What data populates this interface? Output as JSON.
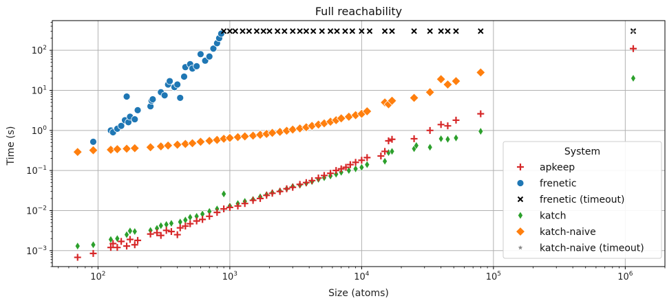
{
  "chart_data": {
    "type": "scatter",
    "title": "Full reachability",
    "xlabel": "Size (atoms)",
    "ylabel": "Time (s)",
    "xscale": "log",
    "yscale": "log",
    "xlim": [
      45,
      2000000
    ],
    "ylim": [
      0.0004,
      550
    ],
    "grid": true,
    "legend": {
      "title": "System",
      "placement": "lower-right"
    },
    "x_ticks": [
      {
        "value": 100,
        "base": "10",
        "exp": "2"
      },
      {
        "value": 1000,
        "base": "10",
        "exp": "3"
      },
      {
        "value": 10000,
        "base": "10",
        "exp": "4"
      },
      {
        "value": 100000,
        "base": "10",
        "exp": "5"
      },
      {
        "value": 1000000,
        "base": "10",
        "exp": "6"
      }
    ],
    "y_ticks": [
      {
        "value": 0.001,
        "base": "10",
        "exp": "−3"
      },
      {
        "value": 0.01,
        "base": "10",
        "exp": "−2"
      },
      {
        "value": 0.1,
        "base": "10",
        "exp": "−1"
      },
      {
        "value": 1,
        "base": "10",
        "exp": "0"
      },
      {
        "value": 10,
        "base": "10",
        "exp": "1"
      },
      {
        "value": 100,
        "base": "10",
        "exp": "2"
      }
    ],
    "series": [
      {
        "name": "apkeep",
        "marker": "plus",
        "color": "#d62728",
        "points": [
          [
            70,
            0.00068
          ],
          [
            92,
            0.00085
          ],
          [
            125,
            0.0012
          ],
          [
            130,
            0.0015
          ],
          [
            140,
            0.0012
          ],
          [
            150,
            0.0017
          ],
          [
            165,
            0.0013
          ],
          [
            175,
            0.0019
          ],
          [
            190,
            0.0014
          ],
          [
            200,
            0.0018
          ],
          [
            250,
            0.0026
          ],
          [
            280,
            0.0028
          ],
          [
            300,
            0.0024
          ],
          [
            330,
            0.0032
          ],
          [
            360,
            0.003
          ],
          [
            400,
            0.0025
          ],
          [
            420,
            0.0037
          ],
          [
            460,
            0.0041
          ],
          [
            500,
            0.0047
          ],
          [
            560,
            0.0055
          ],
          [
            620,
            0.006
          ],
          [
            700,
            0.0072
          ],
          [
            800,
            0.009
          ],
          [
            900,
            0.011
          ],
          [
            1000,
            0.012
          ],
          [
            1150,
            0.013
          ],
          [
            1300,
            0.015
          ],
          [
            1500,
            0.018
          ],
          [
            1700,
            0.02
          ],
          [
            1900,
            0.024
          ],
          [
            2100,
            0.027
          ],
          [
            2400,
            0.03
          ],
          [
            2700,
            0.035
          ],
          [
            3000,
            0.038
          ],
          [
            3400,
            0.045
          ],
          [
            3800,
            0.05
          ],
          [
            4200,
            0.056
          ],
          [
            4700,
            0.065
          ],
          [
            5200,
            0.075
          ],
          [
            5800,
            0.085
          ],
          [
            6400,
            0.1
          ],
          [
            7000,
            0.11
          ],
          [
            7600,
            0.12
          ],
          [
            8200,
            0.14
          ],
          [
            9000,
            0.16
          ],
          [
            10000,
            0.18
          ],
          [
            11000,
            0.21
          ],
          [
            14000,
            0.23
          ],
          [
            15000,
            0.3
          ],
          [
            16000,
            0.55
          ],
          [
            17000,
            0.6
          ],
          [
            25000,
            0.62
          ],
          [
            33000,
            1.0
          ],
          [
            40000,
            1.4
          ],
          [
            45000,
            1.3
          ],
          [
            52000,
            1.8
          ],
          [
            80000,
            2.6
          ],
          [
            1150000,
            110
          ]
        ]
      },
      {
        "name": "frenetic",
        "marker": "circle",
        "color": "#1f77b4",
        "points": [
          [
            92,
            0.52
          ],
          [
            125,
            1.0
          ],
          [
            130,
            0.9
          ],
          [
            140,
            1.1
          ],
          [
            150,
            1.3
          ],
          [
            160,
            1.8
          ],
          [
            165,
            7.0
          ],
          [
            170,
            1.6
          ],
          [
            175,
            2.2
          ],
          [
            190,
            1.9
          ],
          [
            200,
            3.2
          ],
          [
            250,
            4.0
          ],
          [
            255,
            5.5
          ],
          [
            260,
            6.0
          ],
          [
            300,
            9.0
          ],
          [
            320,
            7.5
          ],
          [
            340,
            14
          ],
          [
            350,
            17
          ],
          [
            380,
            12
          ],
          [
            400,
            14
          ],
          [
            420,
            6.5
          ],
          [
            450,
            22
          ],
          [
            460,
            38
          ],
          [
            500,
            45
          ],
          [
            520,
            35
          ],
          [
            560,
            40
          ],
          [
            600,
            80
          ],
          [
            650,
            55
          ],
          [
            700,
            70
          ],
          [
            750,
            110
          ],
          [
            800,
            150
          ],
          [
            830,
            200
          ],
          [
            860,
            260
          ]
        ]
      },
      {
        "name": "frenetic (timeout)",
        "marker": "x",
        "color": "#000000",
        "points": [
          [
            900,
            300
          ],
          [
            1000,
            300
          ],
          [
            1100,
            300
          ],
          [
            1250,
            300
          ],
          [
            1400,
            300
          ],
          [
            1600,
            300
          ],
          [
            1800,
            300
          ],
          [
            2000,
            300
          ],
          [
            2300,
            300
          ],
          [
            2600,
            300
          ],
          [
            3000,
            300
          ],
          [
            3400,
            300
          ],
          [
            3800,
            300
          ],
          [
            4300,
            300
          ],
          [
            5000,
            300
          ],
          [
            5800,
            300
          ],
          [
            6500,
            300
          ],
          [
            7500,
            300
          ],
          [
            8500,
            300
          ],
          [
            10000,
            300
          ],
          [
            11500,
            300
          ],
          [
            15000,
            300
          ],
          [
            17000,
            300
          ],
          [
            25000,
            300
          ],
          [
            33000,
            300
          ],
          [
            40000,
            300
          ],
          [
            45000,
            300
          ],
          [
            52000,
            300
          ],
          [
            80000,
            300
          ],
          [
            1150000,
            300
          ]
        ]
      },
      {
        "name": "katch",
        "marker": "diamond",
        "color": "#2ca02c",
        "points": [
          [
            70,
            0.0013
          ],
          [
            92,
            0.0014
          ],
          [
            125,
            0.0019
          ],
          [
            140,
            0.002
          ],
          [
            165,
            0.0025
          ],
          [
            175,
            0.0031
          ],
          [
            190,
            0.003
          ],
          [
            250,
            0.0032
          ],
          [
            280,
            0.0036
          ],
          [
            300,
            0.0042
          ],
          [
            330,
            0.0045
          ],
          [
            360,
            0.0048
          ],
          [
            420,
            0.0052
          ],
          [
            460,
            0.0058
          ],
          [
            500,
            0.0068
          ],
          [
            560,
            0.0072
          ],
          [
            620,
            0.0082
          ],
          [
            700,
            0.0095
          ],
          [
            800,
            0.011
          ],
          [
            900,
            0.026
          ],
          [
            1000,
            0.013
          ],
          [
            1150,
            0.015
          ],
          [
            1300,
            0.017
          ],
          [
            1500,
            0.019
          ],
          [
            1700,
            0.022
          ],
          [
            1900,
            0.025
          ],
          [
            2100,
            0.028
          ],
          [
            2400,
            0.031
          ],
          [
            2700,
            0.035
          ],
          [
            3000,
            0.04
          ],
          [
            3400,
            0.043
          ],
          [
            3800,
            0.048
          ],
          [
            4200,
            0.053
          ],
          [
            4700,
            0.06
          ],
          [
            5200,
            0.066
          ],
          [
            5800,
            0.073
          ],
          [
            6400,
            0.081
          ],
          [
            7000,
            0.09
          ],
          [
            8000,
            0.1
          ],
          [
            9000,
            0.11
          ],
          [
            10000,
            0.12
          ],
          [
            11000,
            0.14
          ],
          [
            15000,
            0.17
          ],
          [
            16000,
            0.28
          ],
          [
            17000,
            0.3
          ],
          [
            25000,
            0.35
          ],
          [
            26000,
            0.42
          ],
          [
            33000,
            0.38
          ],
          [
            40000,
            0.62
          ],
          [
            45000,
            0.6
          ],
          [
            52000,
            0.65
          ],
          [
            80000,
            0.95
          ],
          [
            1150000,
            20
          ]
        ]
      },
      {
        "name": "katch-naive",
        "marker": "diamond-large",
        "color": "#ff7f0e",
        "points": [
          [
            70,
            0.29
          ],
          [
            92,
            0.32
          ],
          [
            125,
            0.33
          ],
          [
            140,
            0.34
          ],
          [
            165,
            0.35
          ],
          [
            190,
            0.36
          ],
          [
            250,
            0.38
          ],
          [
            300,
            0.4
          ],
          [
            340,
            0.42
          ],
          [
            400,
            0.44
          ],
          [
            460,
            0.46
          ],
          [
            520,
            0.48
          ],
          [
            600,
            0.52
          ],
          [
            700,
            0.55
          ],
          [
            800,
            0.58
          ],
          [
            900,
            0.62
          ],
          [
            1000,
            0.65
          ],
          [
            1150,
            0.68
          ],
          [
            1300,
            0.71
          ],
          [
            1500,
            0.74
          ],
          [
            1700,
            0.78
          ],
          [
            1900,
            0.82
          ],
          [
            2100,
            0.87
          ],
          [
            2400,
            0.92
          ],
          [
            2700,
            0.98
          ],
          [
            3000,
            1.05
          ],
          [
            3400,
            1.12
          ],
          [
            3800,
            1.2
          ],
          [
            4200,
            1.3
          ],
          [
            4700,
            1.4
          ],
          [
            5200,
            1.5
          ],
          [
            5800,
            1.65
          ],
          [
            6400,
            1.8
          ],
          [
            7000,
            2.0
          ],
          [
            8000,
            2.2
          ],
          [
            9000,
            2.4
          ],
          [
            10000,
            2.6
          ],
          [
            11000,
            3.0
          ],
          [
            15000,
            5.0
          ],
          [
            16000,
            4.5
          ],
          [
            17000,
            5.5
          ],
          [
            25000,
            6.5
          ],
          [
            33000,
            9.0
          ],
          [
            40000,
            19
          ],
          [
            45000,
            14
          ],
          [
            52000,
            17
          ],
          [
            80000,
            28
          ]
        ]
      },
      {
        "name": "katch-naive (timeout)",
        "marker": "star",
        "color": "#888888",
        "points": [
          [
            1150000,
            300
          ]
        ]
      }
    ]
  }
}
